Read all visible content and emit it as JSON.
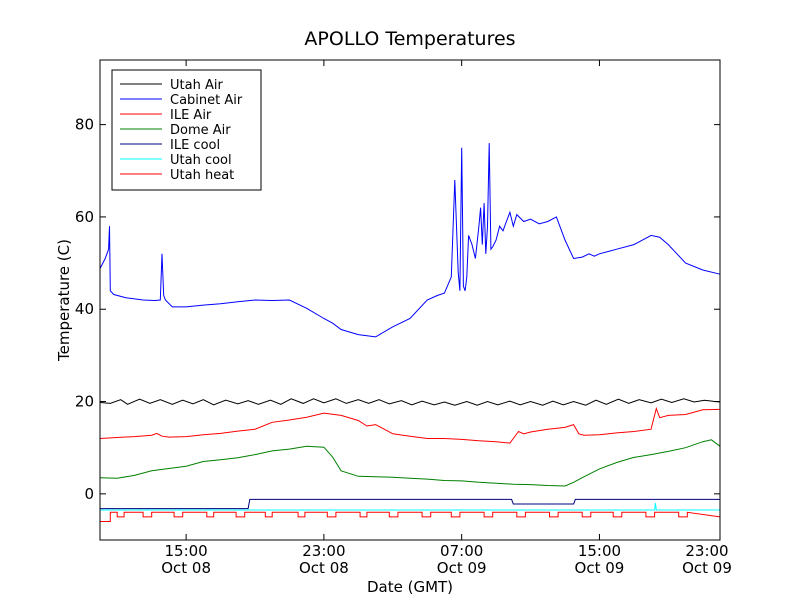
{
  "chart_data": {
    "type": "line",
    "title": "APOLLO Temperatures",
    "xlabel": "Date (GMT)",
    "ylabel": "Temperature (C)",
    "xlim": [
      10.0,
      46.0
    ],
    "ylim": [
      -10,
      94
    ],
    "yticks": [
      0,
      20,
      40,
      60,
      80
    ],
    "xticks": [
      {
        "hour": 15,
        "time": "15:00",
        "date": "Oct 08"
      },
      {
        "hour": 23,
        "time": "23:00",
        "date": "Oct 08"
      },
      {
        "hour": 31,
        "time": "07:00",
        "date": "Oct 09"
      },
      {
        "hour": 39,
        "time": "15:00",
        "date": "Oct 09"
      },
      {
        "hour": 47,
        "time": "23:00",
        "date": "Oct 09"
      }
    ],
    "legend_position": "top-left",
    "series": [
      {
        "name": "Utah Air",
        "color": "#000000",
        "x": [
          10.0,
          10.6,
          11.2,
          11.6,
          12.3,
          12.9,
          13.5,
          14.2,
          14.8,
          15.4,
          16.0,
          16.6,
          17.3,
          18.0,
          18.6,
          19.2,
          19.9,
          20.5,
          21.1,
          21.8,
          22.4,
          23.0,
          23.7,
          24.3,
          25.0,
          25.6,
          26.2,
          26.8,
          27.5,
          28.1,
          28.7,
          29.4,
          30.0,
          30.6,
          31.3,
          31.9,
          32.5,
          33.1,
          33.8,
          34.4,
          35.0,
          35.7,
          36.3,
          36.9,
          37.5,
          38.2,
          38.8,
          39.4,
          40.1,
          40.7,
          41.3,
          42.0,
          42.6,
          43.2,
          43.9,
          44.5,
          45.1,
          45.7,
          46.0
        ],
        "y": [
          19.8,
          19.6,
          20.4,
          19.4,
          20.5,
          19.6,
          20.4,
          19.4,
          20.3,
          19.5,
          20.4,
          19.3,
          20.3,
          19.5,
          20.2,
          19.4,
          20.3,
          19.4,
          20.6,
          19.6,
          20.6,
          19.7,
          20.6,
          19.6,
          20.4,
          19.6,
          20.4,
          19.5,
          20.2,
          19.3,
          20.1,
          19.3,
          19.9,
          19.2,
          20.0,
          19.2,
          20.0,
          19.3,
          20.1,
          19.3,
          20.0,
          19.2,
          20.1,
          19.3,
          20.0,
          19.2,
          20.3,
          19.4,
          20.5,
          19.6,
          20.4,
          19.7,
          20.5,
          19.8,
          20.6,
          19.9,
          20.3,
          20.0,
          19.9
        ]
      },
      {
        "name": "Cabinet Air",
        "color": "#0000ff",
        "x": [
          10.0,
          10.3,
          10.5,
          10.55,
          10.6,
          10.8,
          11.5,
          12.5,
          13.2,
          13.5,
          13.6,
          13.7,
          13.8,
          14.2,
          15.0,
          16.0,
          17.0,
          18.0,
          19.0,
          20.0,
          21.0,
          22.0,
          23.0,
          23.5,
          24.0,
          25.0,
          26.0,
          27.0,
          28.0,
          29.0,
          29.6,
          30.0,
          30.4,
          30.6,
          30.8,
          30.9,
          31.0,
          31.1,
          31.2,
          31.3,
          31.4,
          31.6,
          31.8,
          32.0,
          32.1,
          32.2,
          32.3,
          32.4,
          32.5,
          32.6,
          32.7,
          32.8,
          33.0,
          33.2,
          33.4,
          33.6,
          33.8,
          34.0,
          34.2,
          34.6,
          35.0,
          35.5,
          36.0,
          36.5,
          37.0,
          37.5,
          38.0,
          38.4,
          38.7,
          39.0,
          39.5,
          40.0,
          41.0,
          42.0,
          42.5,
          43.0,
          43.5,
          44.0,
          45.0,
          46.0
        ],
        "y": [
          48.8,
          51.0,
          53.0,
          58.0,
          44.0,
          43.2,
          42.5,
          42.0,
          41.9,
          42.0,
          52.0,
          43.0,
          42.0,
          40.5,
          40.5,
          40.9,
          41.2,
          41.6,
          42.0,
          41.9,
          42.0,
          40.2,
          38.0,
          37.0,
          35.6,
          34.5,
          34.0,
          36.2,
          38.0,
          42.0,
          43.0,
          43.5,
          47.0,
          68.0,
          48.0,
          44.0,
          75.0,
          45.0,
          44.0,
          47.0,
          56.0,
          54.0,
          51.0,
          58.0,
          62.0,
          54.0,
          63.0,
          52.0,
          58.0,
          76.0,
          53.0,
          53.5,
          55.0,
          58.0,
          57.0,
          59.0,
          61.0,
          58.0,
          60.5,
          59.0,
          59.5,
          58.5,
          59.0,
          60.0,
          55.0,
          51.0,
          51.3,
          52.0,
          51.5,
          52.0,
          52.5,
          53.0,
          54.0,
          56.0,
          55.6,
          54.0,
          52.0,
          50.0,
          48.5,
          47.6
        ]
      },
      {
        "name": "ILE Air",
        "color": "#ff0000",
        "x": [
          10.0,
          11.0,
          12.0,
          13.0,
          13.3,
          13.6,
          14.0,
          15.0,
          16.0,
          17.0,
          18.0,
          19.0,
          20.0,
          21.0,
          22.0,
          23.0,
          24.0,
          25.0,
          25.5,
          26.0,
          27.0,
          28.0,
          29.0,
          30.0,
          31.0,
          32.0,
          33.0,
          33.8,
          34.0,
          34.3,
          34.6,
          35.0,
          36.0,
          37.0,
          37.5,
          37.8,
          38.1,
          39.0,
          40.0,
          41.0,
          42.0,
          42.1,
          42.3,
          42.5,
          43.0,
          44.0,
          45.0,
          46.0
        ],
        "y": [
          12.0,
          12.2,
          12.4,
          12.7,
          13.1,
          12.5,
          12.3,
          12.4,
          12.8,
          13.1,
          13.6,
          14.0,
          15.5,
          16.0,
          16.6,
          17.5,
          17.0,
          15.9,
          14.7,
          15.0,
          13.0,
          12.5,
          12.0,
          12.0,
          11.8,
          11.5,
          11.3,
          11.0,
          12.0,
          13.5,
          13.0,
          13.4,
          14.0,
          14.4,
          15.0,
          13.0,
          12.7,
          12.8,
          13.2,
          13.5,
          14.0,
          15.5,
          18.5,
          16.5,
          17.0,
          17.2,
          18.2,
          18.3
        ]
      },
      {
        "name": "Dome Air",
        "color": "#008000",
        "x": [
          10.0,
          11.0,
          12.0,
          13.0,
          14.0,
          15.0,
          16.0,
          17.0,
          18.0,
          19.0,
          20.0,
          21.0,
          22.0,
          23.0,
          23.5,
          24.0,
          25.0,
          26.0,
          27.0,
          28.0,
          29.0,
          30.0,
          31.0,
          32.0,
          33.0,
          34.0,
          35.0,
          36.0,
          37.0,
          37.5,
          38.0,
          39.0,
          40.0,
          41.0,
          42.0,
          43.0,
          44.0,
          45.0,
          45.5,
          46.0
        ],
        "y": [
          3.5,
          3.4,
          4.0,
          5.0,
          5.5,
          6.0,
          7.0,
          7.4,
          7.8,
          8.5,
          9.3,
          9.7,
          10.3,
          10.1,
          8.0,
          5.0,
          3.8,
          3.7,
          3.6,
          3.4,
          3.2,
          2.9,
          2.8,
          2.5,
          2.3,
          2.1,
          2.0,
          1.8,
          1.7,
          2.5,
          3.5,
          5.4,
          6.8,
          7.9,
          8.5,
          9.2,
          10.0,
          11.3,
          11.7,
          10.3
        ]
      },
      {
        "name": "ILE cool",
        "color": "#000080",
        "x": [
          10.0,
          18.6,
          18.7,
          33.9,
          34.0,
          37.5,
          37.6,
          46.0
        ],
        "y": [
          -3.2,
          -3.2,
          -1.2,
          -1.2,
          -2.2,
          -2.2,
          -1.2,
          -1.2
        ]
      },
      {
        "name": "Utah cool",
        "color": "#00ffff",
        "x": [
          10.0,
          42.2,
          42.25,
          42.3,
          46.0
        ],
        "y": [
          -3.5,
          -3.5,
          -2.0,
          -3.5,
          -3.5
        ]
      },
      {
        "name": "Utah heat",
        "color": "#ff0000",
        "x": [
          10.0,
          10.6,
          10.6,
          11.0,
          11.0,
          11.4,
          11.4,
          12.5,
          12.5,
          13.0,
          13.0,
          14.3,
          14.3,
          14.8,
          14.8,
          16.2,
          16.2,
          16.6,
          16.6,
          17.9,
          17.9,
          18.4,
          18.4,
          19.6,
          19.6,
          20.0,
          20.0,
          21.5,
          21.5,
          21.9,
          21.9,
          23.2,
          23.2,
          23.7,
          23.7,
          25.1,
          25.1,
          25.5,
          25.5,
          26.8,
          26.8,
          27.3,
          27.3,
          28.7,
          28.7,
          29.2,
          29.2,
          30.4,
          30.4,
          30.9,
          30.9,
          32.3,
          32.3,
          32.8,
          32.8,
          34.2,
          34.2,
          34.7,
          34.7,
          36.1,
          36.1,
          36.6,
          36.6,
          38.0,
          38.0,
          38.5,
          38.5,
          39.8,
          39.8,
          40.3,
          40.3,
          41.7,
          41.7,
          42.2,
          42.2,
          43.6,
          43.6,
          44.1,
          44.1,
          46.0
        ],
        "y": [
          -6.0,
          -6.0,
          -4.0,
          -4.0,
          -5.0,
          -5.0,
          -4.0,
          -4.0,
          -5.0,
          -5.0,
          -4.0,
          -4.0,
          -5.0,
          -5.0,
          -4.0,
          -4.0,
          -5.0,
          -5.0,
          -4.0,
          -4.0,
          -5.0,
          -5.0,
          -4.0,
          -4.0,
          -5.0,
          -5.0,
          -4.0,
          -4.0,
          -5.0,
          -5.0,
          -4.0,
          -4.0,
          -5.0,
          -5.0,
          -4.0,
          -4.0,
          -5.0,
          -5.0,
          -4.0,
          -4.0,
          -5.0,
          -5.0,
          -4.0,
          -4.0,
          -5.0,
          -5.0,
          -4.0,
          -4.0,
          -5.0,
          -5.0,
          -4.0,
          -4.0,
          -5.0,
          -5.0,
          -4.0,
          -4.0,
          -5.0,
          -5.0,
          -4.0,
          -4.0,
          -5.0,
          -5.0,
          -4.0,
          -4.0,
          -5.0,
          -5.0,
          -4.0,
          -4.0,
          -5.0,
          -5.0,
          -4.0,
          -4.0,
          -5.0,
          -5.0,
          -4.0,
          -4.0,
          -5.0,
          -5.0,
          -4.0,
          -5.0
        ]
      }
    ]
  }
}
